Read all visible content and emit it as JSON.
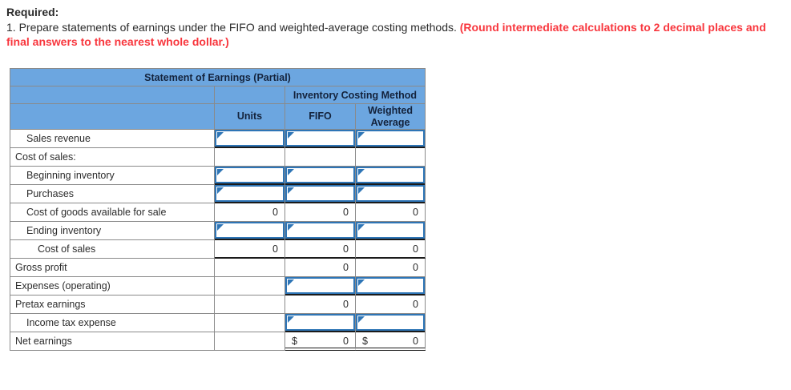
{
  "colors": {
    "header_blue": "#6ca6e0",
    "grid_gray": "#8a8a8a",
    "input_border_blue": "#2e75b6",
    "note_red": "#f8363d",
    "underline_black": "#1a1a1a"
  },
  "icons": {
    "input_marker": "blue right-pointing corner triangle"
  },
  "instructions": {
    "required_label": "Required:",
    "task_text": "1. Prepare statements of earnings under the FIFO and weighted-average costing methods. ",
    "rounding_note": "(Round intermediate calculations to 2 decimal places and final answers to the nearest whole dollar.)"
  },
  "table": {
    "title": "Statement of Earnings (Partial)",
    "group_header": "Inventory Costing Method",
    "columns": {
      "units": "Units",
      "fifo": "FIFO",
      "weighted_average": "Weighted Average"
    },
    "rows": [
      {
        "label": "Sales revenue"
      },
      {
        "label": "Cost of sales:"
      },
      {
        "label": "Beginning inventory"
      },
      {
        "label": "Purchases"
      },
      {
        "label": "Cost of goods available for sale",
        "units": "0",
        "fifo": "0",
        "wa": "0"
      },
      {
        "label": "Ending inventory"
      },
      {
        "label": "Cost of sales",
        "units": "0",
        "fifo": "0",
        "wa": "0"
      },
      {
        "label": "Gross profit",
        "fifo": "0",
        "wa": "0"
      },
      {
        "label": "Expenses (operating)"
      },
      {
        "label": "Pretax earnings",
        "fifo": "0",
        "wa": "0"
      },
      {
        "label": "Income tax expense"
      },
      {
        "label": "Net earnings",
        "currency": "$",
        "fifo": "0",
        "wa": "0"
      }
    ]
  }
}
